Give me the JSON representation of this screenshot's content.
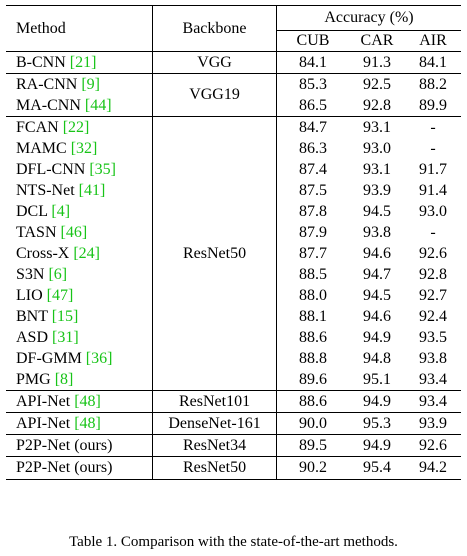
{
  "header": {
    "method": "Method",
    "backbone": "Backbone",
    "accuracy": "Accuracy (%)",
    "cols": [
      "CUB",
      "CAR",
      "AIR"
    ]
  },
  "groups": [
    {
      "backbone": "VGG",
      "rows": [
        {
          "name": "B-CNN ",
          "ref": "[21]",
          "vals": [
            "84.1",
            "91.3",
            "84.1"
          ]
        }
      ]
    },
    {
      "backbone": "VGG19",
      "rows": [
        {
          "name": "RA-CNN ",
          "ref": "[9]",
          "vals": [
            "85.3",
            "92.5",
            "88.2"
          ]
        },
        {
          "name": "MA-CNN ",
          "ref": "[44]",
          "vals": [
            "86.5",
            "92.8",
            "89.9"
          ]
        }
      ]
    },
    {
      "backbone": "ResNet50",
      "rows": [
        {
          "name": "FCAN ",
          "ref": "[22]",
          "vals": [
            "84.7",
            "93.1",
            "-"
          ]
        },
        {
          "name": "MAMC ",
          "ref": "[32]",
          "vals": [
            "86.3",
            "93.0",
            "-"
          ]
        },
        {
          "name": "DFL-CNN ",
          "ref": "[35]",
          "vals": [
            "87.4",
            "93.1",
            "91.7"
          ]
        },
        {
          "name": "NTS-Net ",
          "ref": "[41]",
          "vals": [
            "87.5",
            "93.9",
            "91.4"
          ]
        },
        {
          "name": "DCL ",
          "ref": "[4]",
          "vals": [
            "87.8",
            "94.5",
            "93.0"
          ]
        },
        {
          "name": "TASN ",
          "ref": "[46]",
          "vals": [
            "87.9",
            "93.8",
            "-"
          ]
        },
        {
          "name": "Cross-X ",
          "ref": "[24]",
          "vals": [
            "87.7",
            "94.6",
            "92.6"
          ]
        },
        {
          "name": "S3N ",
          "ref": "[6]",
          "vals": [
            "88.5",
            "94.7",
            "92.8"
          ]
        },
        {
          "name": "LIO ",
          "ref": "[47]",
          "vals": [
            "88.0",
            "94.5",
            "92.7"
          ]
        },
        {
          "name": "BNT ",
          "ref": "[15]",
          "vals": [
            "88.1",
            "94.6",
            "92.4"
          ]
        },
        {
          "name": "ASD ",
          "ref": "[31]",
          "vals": [
            "88.6",
            "94.9",
            "93.5"
          ]
        },
        {
          "name": "DF-GMM ",
          "ref": "[36]",
          "vals": [
            "88.8",
            "94.8",
            "93.8"
          ]
        },
        {
          "name": "PMG ",
          "ref": "[8]",
          "vals": [
            "89.6",
            "95.1",
            "93.4"
          ]
        }
      ]
    },
    {
      "backbone": "ResNet101",
      "rows": [
        {
          "name": "API-Net ",
          "ref": "[48]",
          "vals": [
            "88.6",
            "94.9",
            "93.4"
          ]
        }
      ]
    },
    {
      "backbone": "DenseNet-161",
      "rows": [
        {
          "name": "API-Net ",
          "ref": "[48]",
          "vals": [
            "90.0",
            "95.3",
            "93.9"
          ]
        }
      ]
    },
    {
      "backbone": "ResNet34",
      "rows": [
        {
          "name": "P2P-Net (ours)",
          "ref": "",
          "vals": [
            "89.5",
            "94.9",
            "92.6"
          ]
        }
      ]
    },
    {
      "backbone": "ResNet50",
      "bold_vals": true,
      "rows": [
        {
          "name": "P2P-Net (ours)",
          "ref": "",
          "vals": [
            "90.2",
            "95.4",
            "94.2"
          ]
        }
      ]
    }
  ],
  "caption": "Table 1. Comparison with the state-of-the-art methods.",
  "colors": {
    "ref": "#18c418"
  }
}
